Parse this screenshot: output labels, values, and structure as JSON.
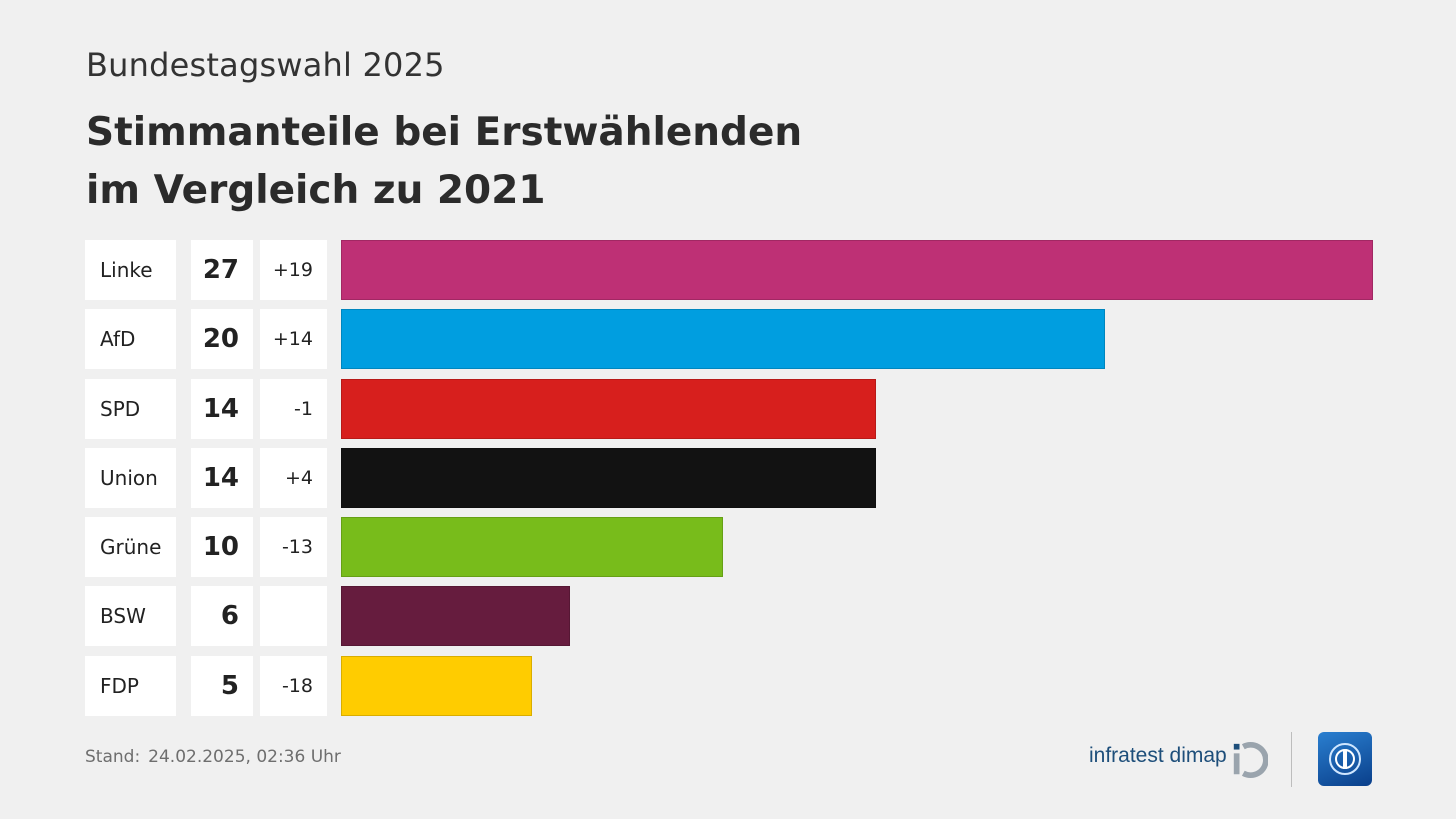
{
  "header": {
    "kicker": "Bundestagswahl 2025",
    "title_line1": "Stimmanteile bei Erstwählenden",
    "title_line2": "im Vergleich zu 2021"
  },
  "chart_data": {
    "type": "bar",
    "orientation": "horizontal",
    "title": "Stimmanteile bei Erstwählenden im Vergleich zu 2021",
    "categories": [
      "Linke",
      "AfD",
      "SPD",
      "Union",
      "Grüne",
      "BSW",
      "FDP"
    ],
    "values": [
      27,
      20,
      14,
      14,
      10,
      6,
      5
    ],
    "changes": [
      "+19",
      "+14",
      "-1",
      "+4",
      "-13",
      "",
      "-18"
    ],
    "colors": [
      "#be3075",
      "#009ee0",
      "#d71f1d",
      "#121212",
      "#78bc1b",
      "#661c3e",
      "#ffcc00"
    ],
    "xlim": [
      0,
      27
    ],
    "grid": false,
    "legend": "none"
  },
  "footer": {
    "stand_label": "Stand:",
    "stand_value": "24.02.2025, 02:36 Uhr",
    "brand": "infratest dimap"
  },
  "icons": {
    "infratest": "infratest-dimap-logo-icon",
    "tagesschau": "tagesschau-logo-icon"
  }
}
